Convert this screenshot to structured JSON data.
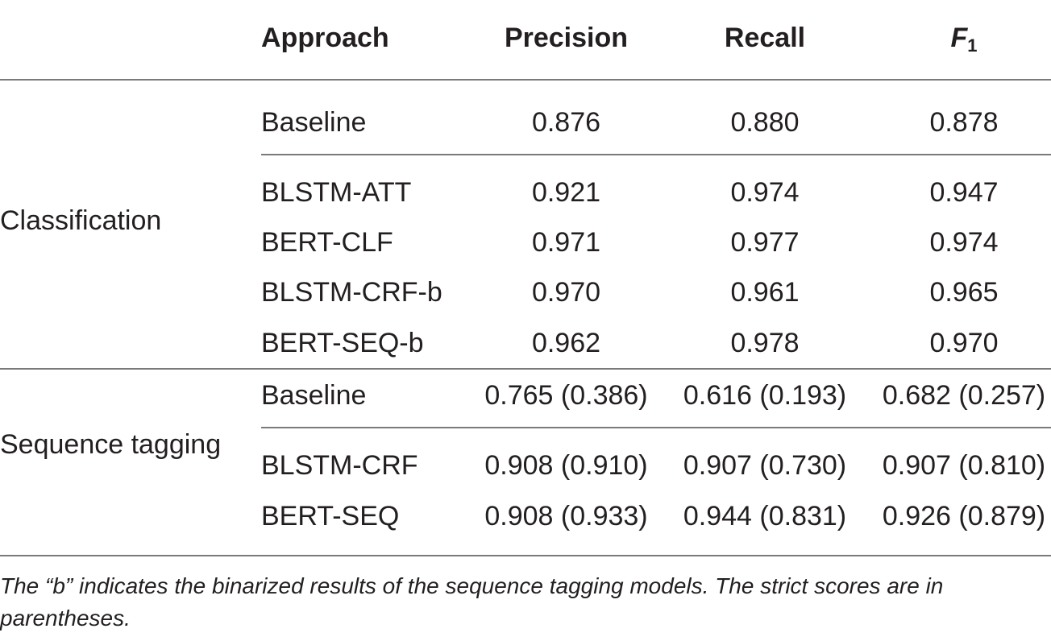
{
  "header": {
    "approach": "Approach",
    "precision": "Precision",
    "recall": "Recall",
    "f1_base": "F",
    "f1_sub": "1"
  },
  "groups": {
    "classification": "Classification",
    "sequence_tagging": "Sequence tagging"
  },
  "rows": [
    {
      "approach": "Baseline",
      "precision": "0.876",
      "recall": "0.880",
      "f1": "0.878"
    },
    {
      "approach": "BLSTM-ATT",
      "precision": "0.921",
      "recall": "0.974",
      "f1": "0.947"
    },
    {
      "approach": "BERT-CLF",
      "precision": "0.971",
      "recall": "0.977",
      "f1": "0.974"
    },
    {
      "approach": "BLSTM-CRF-b",
      "precision": "0.970",
      "recall": "0.961",
      "f1": "0.965"
    },
    {
      "approach": "BERT-SEQ-b",
      "precision": "0.962",
      "recall": "0.978",
      "f1": "0.970"
    },
    {
      "approach": "Baseline",
      "precision": "0.765 (0.386)",
      "recall": "0.616 (0.193)",
      "f1": "0.682 (0.257)"
    },
    {
      "approach": "BLSTM-CRF",
      "precision": "0.908 (0.910)",
      "recall": "0.907 (0.730)",
      "f1": "0.907 (0.810)"
    },
    {
      "approach": "BERT-SEQ",
      "precision": "0.908 (0.933)",
      "recall": "0.944 (0.831)",
      "f1": "0.926 (0.879)"
    }
  ],
  "footnote": "The “b” indicates the binarized results of the sequence tagging models. The strict scores are in parentheses."
}
